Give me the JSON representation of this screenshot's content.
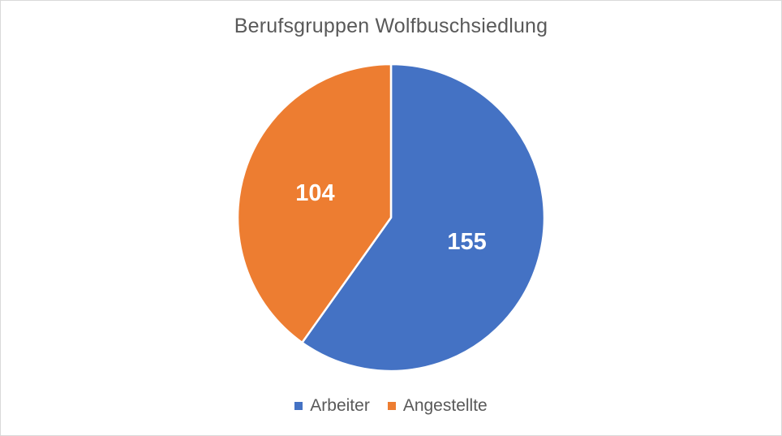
{
  "chart_data": {
    "type": "pie",
    "title": "Berufsgruppen Wolfbuschsiedlung",
    "categories": [
      "Arbeiter",
      "Angestellte"
    ],
    "values": [
      155,
      104
    ],
    "colors": [
      "#4472c4",
      "#ed7d31"
    ],
    "data_labels": [
      "155",
      "104"
    ],
    "legend_position": "bottom",
    "start_angle": "12 o'clock",
    "direction": "clockwise"
  },
  "legend": {
    "items": [
      {
        "label": "Arbeiter",
        "color": "#4472c4"
      },
      {
        "label": "Angestellte",
        "color": "#ed7d31"
      }
    ]
  }
}
